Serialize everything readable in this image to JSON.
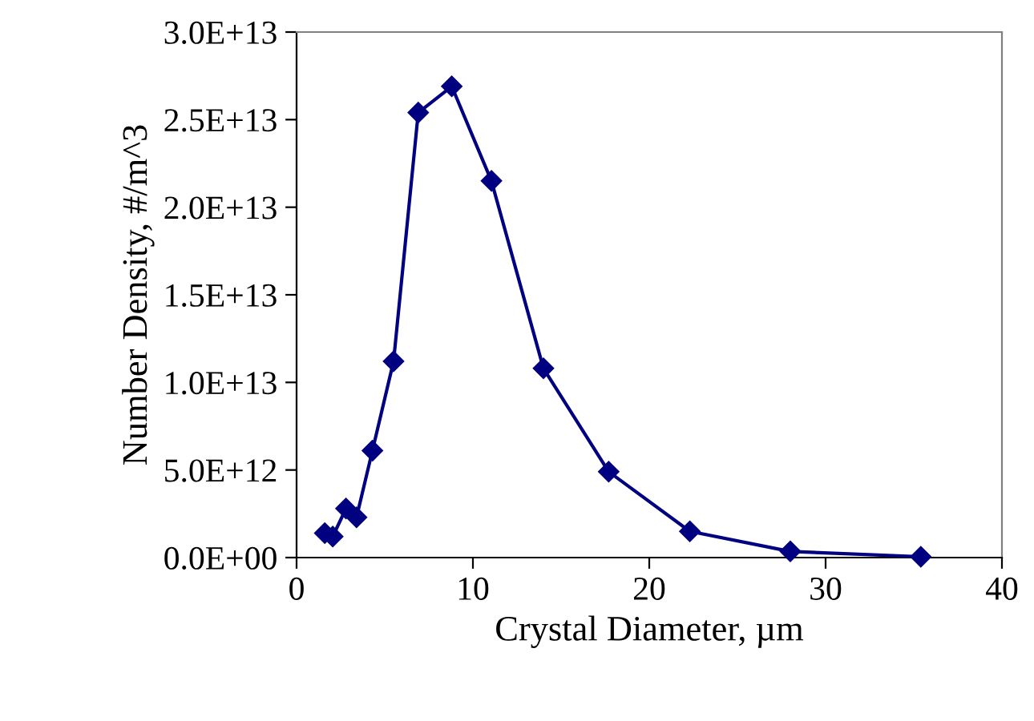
{
  "chart_data": {
    "type": "line",
    "xlabel": "Crystal Diameter, µm",
    "ylabel": "Number Density, #/m^3",
    "x": [
      1.6,
      2.05,
      2.8,
      3.4,
      4.3,
      5.5,
      6.9,
      8.8,
      11.05,
      14.0,
      17.7,
      22.3,
      28.0,
      35.4
    ],
    "series": [
      {
        "color": "#000080",
        "values": [
          1400000000000.0,
          1200000000000.0,
          2800000000000.0,
          2300000000000.0,
          6100000000000.0,
          11200000000000.0,
          25400000000000.0,
          26900000000000.0,
          21500000000000.0,
          10800000000000.0,
          4900000000000.0,
          1500000000000.0,
          350000000000.0,
          50000000000.0
        ]
      }
    ],
    "marker": "diamond",
    "line_style": "solid",
    "grid": false,
    "legend": false,
    "xlim": [
      0,
      40
    ],
    "xticks": [
      0,
      10,
      20,
      30,
      40
    ],
    "ylim": [
      0,
      30000000000000.0
    ],
    "yticks": [
      {
        "value": 0,
        "label": "0.0E+00"
      },
      {
        "value": 5000000000000.0,
        "label": "5.0E+12"
      },
      {
        "value": 10000000000000.0,
        "label": "1.0E+13"
      },
      {
        "value": 15000000000000.0,
        "label": "1.5E+13"
      },
      {
        "value": 20000000000000.0,
        "label": "2.0E+13"
      },
      {
        "value": 25000000000000.0,
        "label": "2.5E+13"
      },
      {
        "value": 30000000000000.0,
        "label": "3.0E+13"
      }
    ]
  }
}
